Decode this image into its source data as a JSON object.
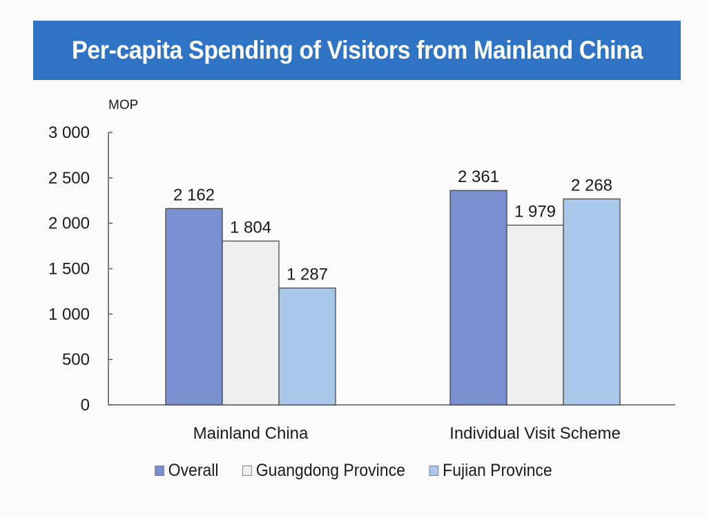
{
  "chart_data": {
    "type": "bar",
    "title": "Per-capita Spending of Visitors from Mainland China",
    "ylabel": "MOP",
    "xlabel": "",
    "categories": [
      "Mainland China",
      "Individual Visit Scheme"
    ],
    "series": [
      {
        "name": "Overall",
        "values": [
          2162,
          2361
        ],
        "labels": [
          "2 162",
          "2 361"
        ],
        "color": "#7a8fd0"
      },
      {
        "name": "Guangdong Province",
        "values": [
          1804,
          1979
        ],
        "labels": [
          "1 804",
          "1 979"
        ],
        "color": "#eeeeee"
      },
      {
        "name": "Fujian Province",
        "values": [
          1287,
          2268
        ],
        "labels": [
          "1 287",
          "2 268"
        ],
        "color": "#a9c7e8"
      }
    ],
    "ylim": [
      0,
      3000
    ],
    "yticks": [
      0,
      500,
      1000,
      1500,
      2000,
      2500,
      3000
    ],
    "ytick_labels": [
      "0",
      "500",
      "1 000",
      "1 500",
      "2 000",
      "2 500",
      "3 000"
    ],
    "grid": false,
    "legend_position": "bottom"
  },
  "colors": {
    "title_background": "#2f74c4",
    "title_text": "#ffffff",
    "axis": "#555555"
  }
}
